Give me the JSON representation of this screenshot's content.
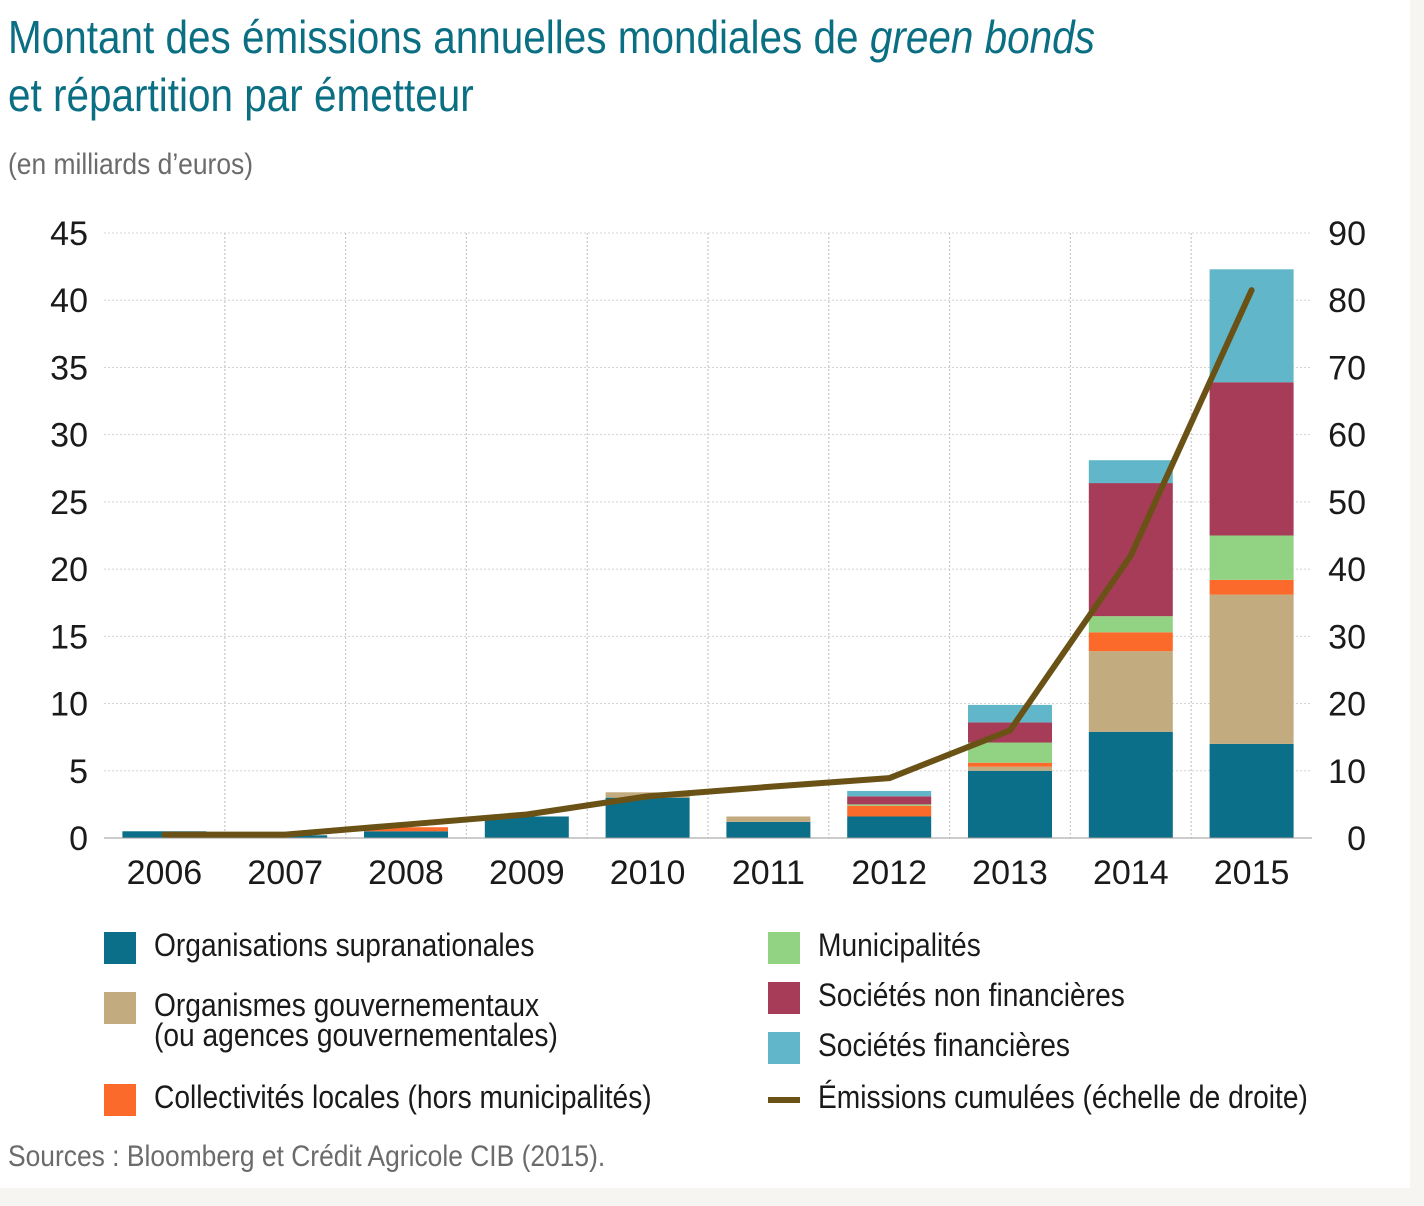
{
  "header": {
    "title_line1_prefix": "Montant des émissions annuelles mondiales de ",
    "title_line1_emph": "green bonds",
    "title_line2": "et répartition par émetteur",
    "subtitle": "(en milliards d’euros)"
  },
  "footer": {
    "source": "Sources : Bloomberg et Crédit Agricole CIB (2015)."
  },
  "colors": {
    "supranational": "#0b6f89",
    "governmental": "#c2ab7e",
    "local": "#fb6a2a",
    "municipal": "#92d383",
    "nonfinancial": "#a63c58",
    "financial": "#62b6c9",
    "cumulative": "#6a5217"
  },
  "chart_data": {
    "type": "bar",
    "stacked": true,
    "categories": [
      "2006",
      "2007",
      "2008",
      "2009",
      "2010",
      "2011",
      "2012",
      "2013",
      "2014",
      "2015"
    ],
    "y_left": {
      "ylim": [
        0,
        45
      ],
      "ticks": [
        "0",
        "5",
        "10",
        "15",
        "20",
        "25",
        "30",
        "35",
        "40",
        "45"
      ]
    },
    "y_right": {
      "ylim": [
        0,
        90
      ],
      "ticks": [
        "0",
        "10",
        "20",
        "30",
        "40",
        "50",
        "60",
        "70",
        "80",
        "90"
      ]
    },
    "grid": "vertical",
    "legend_position": "bottom",
    "series": [
      {
        "key": "supranational",
        "name": "Organisations supranationales",
        "values": [
          0.5,
          0.2,
          0.5,
          1.6,
          3.0,
          1.2,
          1.6,
          5.0,
          7.9,
          7.0
        ]
      },
      {
        "key": "governmental",
        "name": "Organismes gouvernementaux (ou agences gouvernementales)",
        "values": [
          0,
          0,
          0,
          0,
          0.4,
          0.4,
          0,
          0.3,
          6.0,
          11.1
        ]
      },
      {
        "key": "local",
        "name": "Collectivités locales (hors municipalités)",
        "values": [
          0,
          0,
          0.3,
          0,
          0,
          0,
          0.8,
          0.3,
          1.4,
          1.1
        ]
      },
      {
        "key": "municipal",
        "name": "Municipalités",
        "values": [
          0,
          0,
          0,
          0,
          0,
          0,
          0.1,
          1.5,
          1.2,
          3.3
        ]
      },
      {
        "key": "nonfinancial",
        "name": "Sociétés non financières",
        "values": [
          0,
          0,
          0,
          0,
          0,
          0,
          0.6,
          1.5,
          9.9,
          11.4
        ]
      },
      {
        "key": "financial",
        "name": "Sociétés financières",
        "values": [
          0,
          0,
          0,
          0,
          0,
          0,
          0.4,
          1.3,
          1.7,
          8.4
        ]
      }
    ],
    "line": {
      "key": "cumulative",
      "name": "Émissions cumulées (échelle de droite)",
      "axis": "right",
      "values": [
        0.5,
        0.5,
        2.0,
        3.5,
        6.2,
        7.6,
        8.9,
        16.0,
        42.0,
        81.5
      ]
    }
  },
  "legend": {
    "items": [
      {
        "key": "supranational",
        "label": "Organisations supranationales"
      },
      {
        "key": "governmental",
        "label": "Organismes gouvernementaux",
        "label2": "(ou agences gouvernementales)"
      },
      {
        "key": "local",
        "label": "Collectivités locales (hors municipalités)"
      },
      {
        "key": "municipal",
        "label": "Municipalités"
      },
      {
        "key": "nonfinancial",
        "label": "Sociétés non financières"
      },
      {
        "key": "financial",
        "label": "Sociétés financières"
      },
      {
        "key": "cumulative",
        "label": "Émissions cumulées (échelle de droite)"
      }
    ]
  }
}
